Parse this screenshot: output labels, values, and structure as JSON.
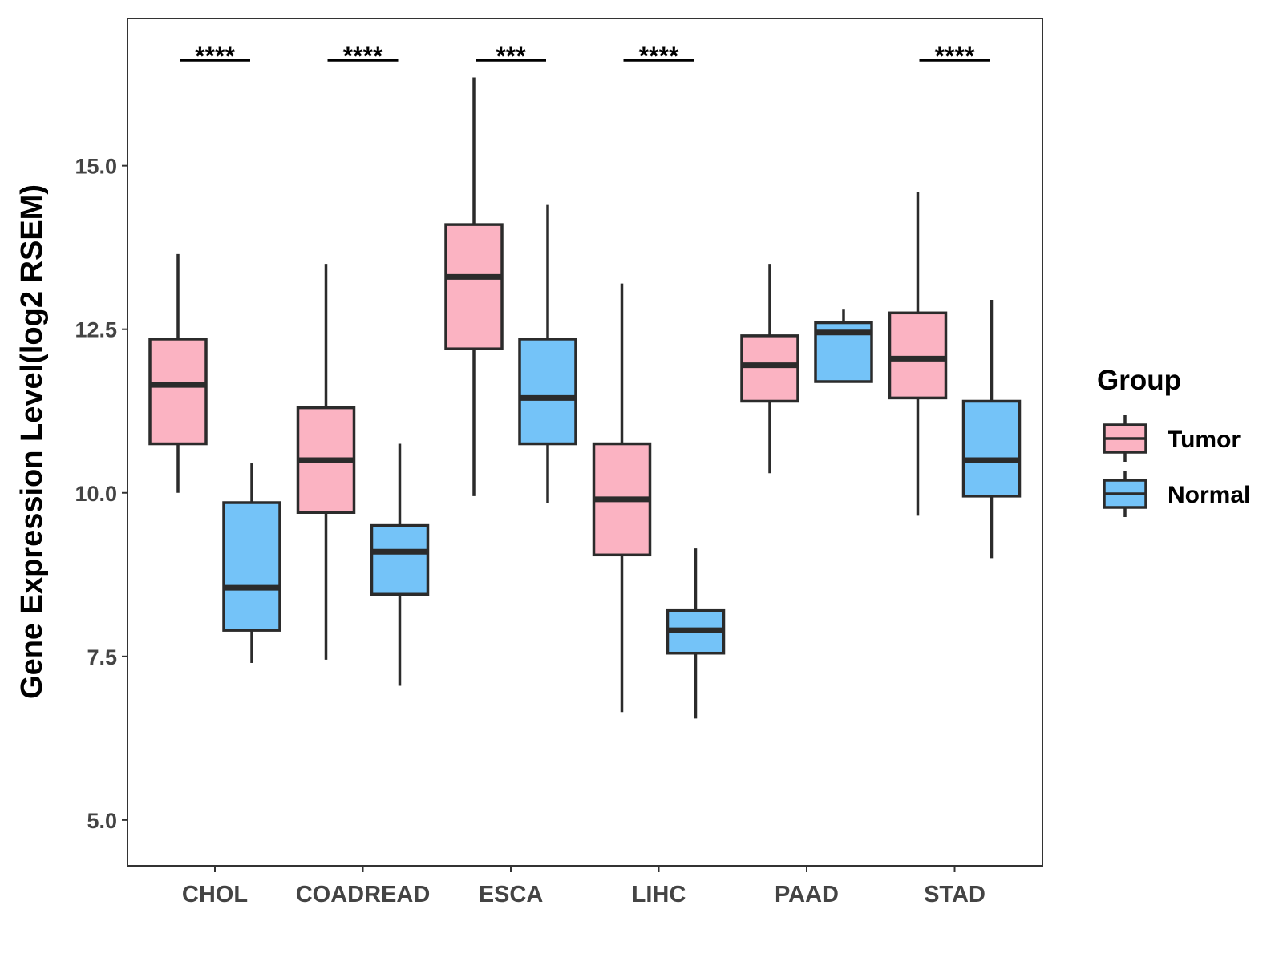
{
  "chart_data": {
    "type": "boxplot",
    "ylabel": "Gene Expression Level(log2 RSEM)",
    "xlabel": "",
    "ylim": [
      4.3,
      17.25
    ],
    "yticks": [
      5.0,
      7.5,
      10.0,
      12.5,
      15.0
    ],
    "ytick_labels": [
      "5.0",
      "7.5",
      "10.0",
      "12.5",
      "15.0"
    ],
    "categories": [
      "CHOL",
      "COADREAD",
      "ESCA",
      "LIHC",
      "PAAD",
      "STAD"
    ],
    "legend": {
      "title": "Group",
      "position": "right",
      "entries": [
        {
          "name": "Tumor",
          "color": "#FBB3C2"
        },
        {
          "name": "Normal",
          "color": "#74C3F8"
        }
      ]
    },
    "series": [
      {
        "name": "Tumor",
        "color": "#FBB3C2",
        "boxes": [
          {
            "category": "CHOL",
            "min": 10.0,
            "q1": 10.75,
            "median": 11.65,
            "q3": 12.35,
            "max": 13.65
          },
          {
            "category": "COADREAD",
            "min": 7.45,
            "q1": 9.7,
            "median": 10.5,
            "q3": 11.3,
            "max": 13.5
          },
          {
            "category": "ESCA",
            "min": 9.95,
            "q1": 12.2,
            "median": 13.3,
            "q3": 14.1,
            "max": 16.35
          },
          {
            "category": "LIHC",
            "min": 6.65,
            "q1": 9.05,
            "median": 9.9,
            "q3": 10.75,
            "max": 13.2
          },
          {
            "category": "PAAD",
            "min": 10.3,
            "q1": 11.4,
            "median": 11.95,
            "q3": 12.4,
            "max": 13.5
          },
          {
            "category": "STAD",
            "min": 9.65,
            "q1": 11.45,
            "median": 12.05,
            "q3": 12.75,
            "max": 14.6
          }
        ]
      },
      {
        "name": "Normal",
        "color": "#74C3F8",
        "boxes": [
          {
            "category": "CHOL",
            "min": 7.4,
            "q1": 7.9,
            "median": 8.55,
            "q3": 9.85,
            "max": 10.45
          },
          {
            "category": "COADREAD",
            "min": 7.05,
            "q1": 8.45,
            "median": 9.1,
            "q3": 9.5,
            "max": 10.75
          },
          {
            "category": "ESCA",
            "min": 9.85,
            "q1": 10.75,
            "median": 11.45,
            "q3": 12.35,
            "max": 14.4
          },
          {
            "category": "LIHC",
            "min": 6.55,
            "q1": 7.55,
            "median": 7.9,
            "q3": 8.2,
            "max": 9.15
          },
          {
            "category": "PAAD",
            "min": 11.7,
            "q1": 11.7,
            "median": 12.45,
            "q3": 12.6,
            "max": 12.8
          },
          {
            "category": "STAD",
            "min": 9.0,
            "q1": 9.95,
            "median": 10.5,
            "q3": 11.4,
            "max": 12.95
          }
        ]
      }
    ],
    "significance": [
      {
        "category": "CHOL",
        "label": "****"
      },
      {
        "category": "COADREAD",
        "label": "****"
      },
      {
        "category": "ESCA",
        "label": "***"
      },
      {
        "category": "LIHC",
        "label": "****"
      },
      {
        "category": "PAAD",
        "label": ""
      },
      {
        "category": "STAD",
        "label": "****"
      }
    ]
  }
}
